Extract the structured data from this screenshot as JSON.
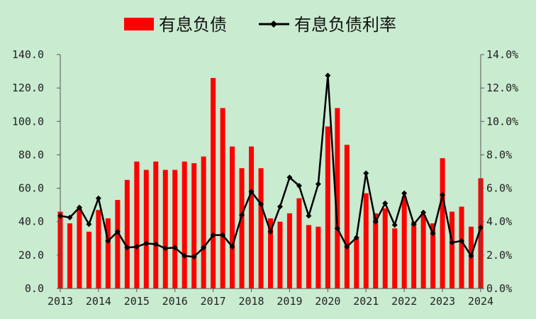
{
  "chart_data": {
    "type": "bar",
    "colors": {
      "bars": "#ff0000",
      "line": "#000000",
      "background": "#c9ebd0"
    },
    "legend": {
      "placement": "top-center",
      "entries": [
        "有息负债",
        "有息负债利率"
      ]
    },
    "x": [
      2013.0,
      2013.25,
      2013.5,
      2013.75,
      2014.0,
      2014.25,
      2014.5,
      2014.75,
      2015.0,
      2015.25,
      2015.5,
      2015.75,
      2016.0,
      2016.25,
      2016.5,
      2016.75,
      2017.0,
      2017.25,
      2017.5,
      2017.75,
      2018.0,
      2018.25,
      2018.5,
      2018.75,
      2019.0,
      2019.25,
      2019.5,
      2019.75,
      2020.0,
      2020.25,
      2020.5,
      2020.75,
      2021.0,
      2021.25,
      2021.5,
      2021.75,
      2022.0,
      2022.25,
      2022.5,
      2022.75,
      2023.0,
      2023.25,
      2023.5,
      2023.75,
      2024.0
    ],
    "x_ticks": [
      "2013",
      "2014",
      "2015",
      "2016",
      "2017",
      "2018",
      "2019",
      "2020",
      "2021",
      "2022",
      "2023",
      "2024"
    ],
    "x_range": [
      2013,
      2024
    ],
    "y_left_ticks": [
      "0.0",
      "20.0",
      "40.0",
      "60.0",
      "80.0",
      "100.0",
      "120.0",
      "140.0"
    ],
    "y_right_ticks": [
      "0.0%",
      "2.0%",
      "4.0%",
      "6.0%",
      "8.0%",
      "10.0%",
      "12.0%",
      "14.0%"
    ],
    "y_left_range": [
      0,
      140
    ],
    "y_right_range": [
      0,
      14
    ],
    "grid": false,
    "series": [
      {
        "name": "有息负债",
        "type": "bar",
        "axis": "left",
        "values": [
          46,
          39,
          48,
          34,
          47,
          42,
          53,
          65,
          76,
          71,
          76,
          71,
          71,
          76,
          75,
          79,
          126,
          108,
          85,
          72,
          85,
          72,
          42,
          40,
          45,
          54,
          38,
          37,
          97,
          108,
          86,
          30,
          57,
          45,
          48,
          36,
          55,
          40,
          44,
          39,
          78,
          46,
          49,
          37,
          66
        ]
      },
      {
        "name": "有息负债利率",
        "type": "line",
        "axis": "right",
        "values": [
          4.35,
          4.25,
          4.85,
          3.85,
          5.4,
          2.85,
          3.4,
          2.45,
          2.5,
          2.7,
          2.65,
          2.4,
          2.45,
          1.95,
          1.9,
          2.45,
          3.2,
          3.2,
          2.5,
          4.4,
          5.8,
          5.05,
          3.4,
          4.9,
          6.65,
          6.15,
          4.35,
          6.25,
          12.75,
          3.6,
          2.5,
          3.05,
          6.9,
          4.0,
          5.1,
          3.8,
          5.7,
          3.85,
          4.55,
          3.3,
          5.6,
          2.75,
          2.85,
          1.95,
          3.65
        ]
      }
    ]
  }
}
